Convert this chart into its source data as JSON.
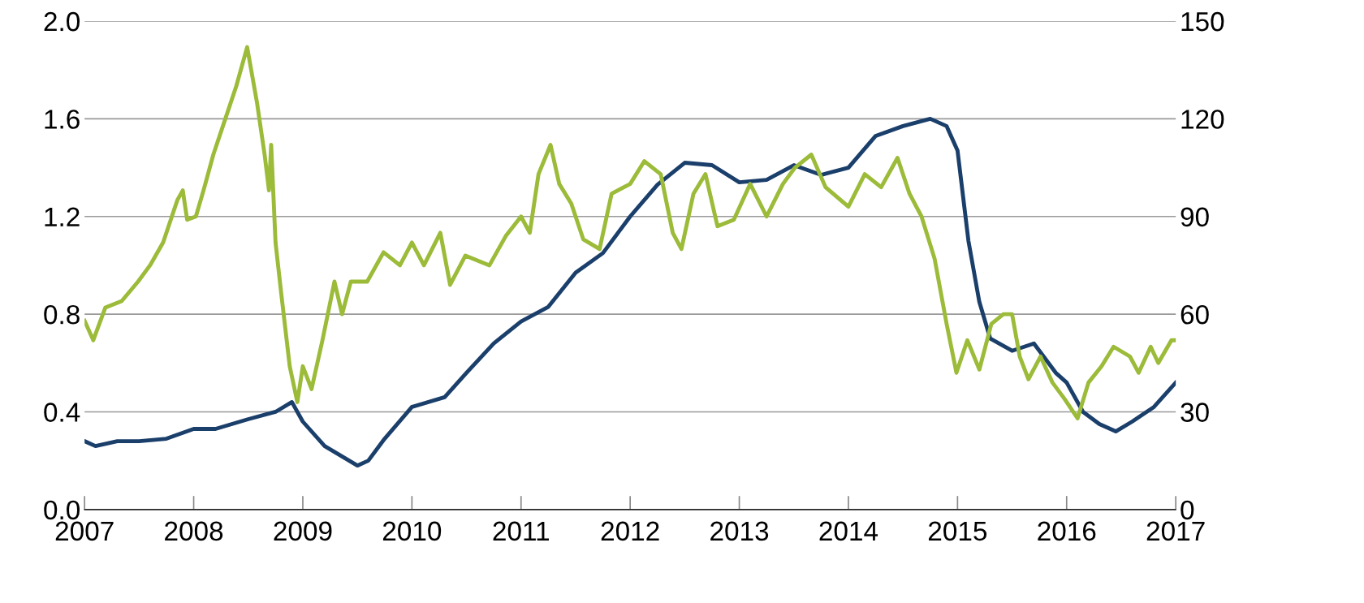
{
  "chart_data": {
    "type": "line",
    "xlim": [
      2007,
      2017
    ],
    "xticks": [
      2007,
      2008,
      2009,
      2010,
      2011,
      2012,
      2013,
      2014,
      2015,
      2016,
      2017
    ],
    "ylim": [
      0,
      2.0
    ],
    "yticks": [
      {
        "value": 0,
        "label": "0.0"
      },
      0.4,
      0.8,
      1.2,
      1.6,
      {
        "value": 2,
        "label": "2.0"
      }
    ],
    "y2lim": [
      0,
      150
    ],
    "y2ticks": [
      0,
      30,
      60,
      90,
      120,
      150
    ],
    "grid": "y",
    "legend": false,
    "marker": "none",
    "line_style": "solid",
    "series": [
      {
        "color": "#1b3f6b",
        "x": [
          2007.0,
          2007.1,
          2007.3,
          2007.5,
          2007.75,
          2008.0,
          2008.2,
          2008.5,
          2008.75,
          2008.9,
          2009.0,
          2009.2,
          2009.35,
          2009.5,
          2009.6,
          2009.75,
          2010.0,
          2010.3,
          2010.5,
          2010.75,
          2011.0,
          2011.25,
          2011.5,
          2011.75,
          2012.0,
          2012.25,
          2012.5,
          2012.75,
          2013.0,
          2013.25,
          2013.5,
          2013.75,
          2014.0,
          2014.25,
          2014.5,
          2014.75,
          2014.9,
          2015.0,
          2015.1,
          2015.2,
          2015.3,
          2015.5,
          2015.7,
          2015.9,
          2016.0,
          2016.15,
          2016.3,
          2016.45,
          2016.6,
          2016.8,
          2017.0
        ],
        "values": [
          0.28,
          0.26,
          0.28,
          0.28,
          0.29,
          0.33,
          0.33,
          0.37,
          0.4,
          0.44,
          0.36,
          0.26,
          0.22,
          0.18,
          0.2,
          0.29,
          0.42,
          0.46,
          0.56,
          0.68,
          0.77,
          0.83,
          0.97,
          1.05,
          1.2,
          1.33,
          1.42,
          1.41,
          1.34,
          1.35,
          1.41,
          1.37,
          1.4,
          1.53,
          1.57,
          1.6,
          1.57,
          1.47,
          1.1,
          0.85,
          0.7,
          0.65,
          0.68,
          0.56,
          0.52,
          0.4,
          0.35,
          0.32,
          0.36,
          0.42,
          0.52
        ]
      },
      {
        "color": "#9bbb39",
        "axis": "y2",
        "x": [
          2007.0,
          2007.08,
          2007.19,
          2007.34,
          2007.49,
          2007.6,
          2007.72,
          2007.85,
          2007.9,
          2007.94,
          2008.02,
          2008.09,
          2008.18,
          2008.28,
          2008.39,
          2008.49,
          2008.58,
          2008.65,
          2008.69,
          2008.71,
          2008.75,
          2008.8,
          2008.88,
          2008.95,
          2009.0,
          2009.08,
          2009.18,
          2009.29,
          2009.36,
          2009.44,
          2009.59,
          2009.74,
          2009.89,
          2010.0,
          2010.11,
          2010.26,
          2010.35,
          2010.49,
          2010.71,
          2010.86,
          2011.0,
          2011.08,
          2011.16,
          2011.27,
          2011.35,
          2011.46,
          2011.57,
          2011.72,
          2011.83,
          2012.0,
          2012.13,
          2012.28,
          2012.39,
          2012.47,
          2012.58,
          2012.69,
          2012.8,
          2012.95,
          2013.1,
          2013.25,
          2013.4,
          2013.51,
          2013.66,
          2013.79,
          2014.0,
          2014.15,
          2014.3,
          2014.45,
          2014.56,
          2014.67,
          2014.79,
          2014.9,
          2014.99,
          2015.09,
          2015.2,
          2015.31,
          2015.42,
          2015.5,
          2015.57,
          2015.65,
          2015.76,
          2015.87,
          2015.98,
          2016.1,
          2016.2,
          2016.32,
          2016.43,
          2016.58,
          2016.66,
          2016.77,
          2016.84,
          2016.96,
          2017.0
        ],
        "values": [
          58,
          52,
          62,
          64,
          70,
          75,
          82,
          95,
          98,
          89,
          90,
          98,
          109,
          119,
          130,
          142,
          125,
          109,
          98,
          112,
          82,
          67,
          44,
          33,
          44,
          37,
          52,
          70,
          60,
          70,
          70,
          79,
          75,
          82,
          75,
          85,
          69,
          78,
          75,
          84,
          90,
          85,
          103,
          112,
          100,
          94,
          83,
          80,
          97,
          100,
          107,
          103,
          85,
          80,
          97,
          103,
          87,
          89,
          100,
          90,
          100,
          105,
          109,
          99,
          93,
          103,
          99,
          108,
          97,
          90,
          77,
          57,
          42,
          52,
          43,
          57,
          60,
          60,
          47,
          40,
          47,
          39,
          34,
          28,
          39,
          44,
          50,
          47,
          42,
          50,
          45,
          52,
          52
        ]
      }
    ]
  }
}
